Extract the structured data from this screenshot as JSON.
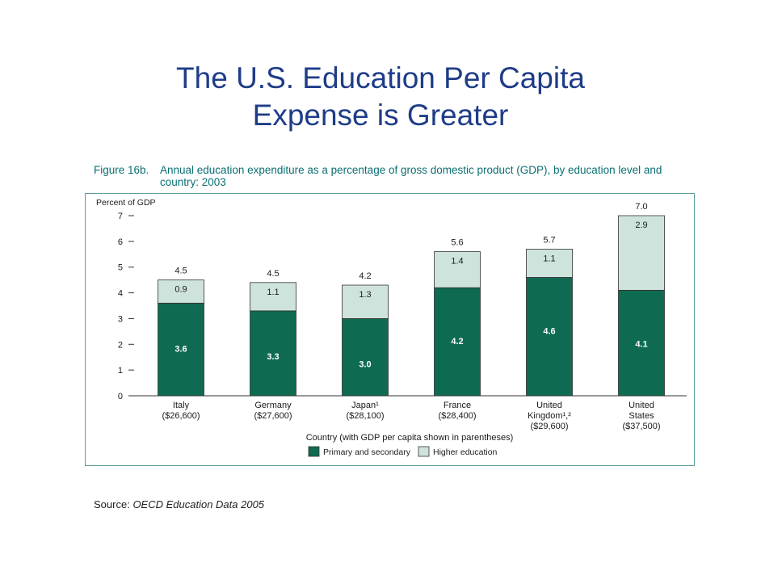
{
  "slide": {
    "title_line1": "The U.S. Education Per Capita",
    "title_line2": "Expense is Greater",
    "source_label": "Source:",
    "source_text": "OECD Education Data 2005"
  },
  "figure": {
    "label": "Figure 16b.",
    "caption": "Annual education expenditure as a percentage of gross domestic product (GDP), by education level and country: 2003"
  },
  "colors": {
    "primary": "#0e6b52",
    "higher": "#cfe3dd",
    "frame": "#5d9f9b",
    "caption": "#0b6f72",
    "title": "#1f3c88"
  },
  "chart_data": {
    "type": "bar",
    "stacked": true,
    "ylabel": "Percent of GDP",
    "xlabel": "Country (with GDP per capita shown in parentheses)",
    "ylim": [
      0,
      7
    ],
    "yticks": [
      0,
      1,
      2,
      3,
      4,
      5,
      6,
      7
    ],
    "categories": [
      [
        "Italy",
        "($26,600)"
      ],
      [
        "Germany",
        "($27,600)"
      ],
      [
        "Japan¹",
        "($28,100)"
      ],
      [
        "France",
        "($28,400)"
      ],
      [
        "United",
        "Kingdom¹,²",
        "($29,600)"
      ],
      [
        "United",
        "States",
        "($37,500)"
      ]
    ],
    "series": [
      {
        "name": "Primary and secondary",
        "values": [
          3.6,
          3.3,
          3.0,
          4.2,
          4.6,
          4.1
        ]
      },
      {
        "name": "Higher education",
        "values": [
          0.9,
          1.1,
          1.3,
          1.4,
          1.1,
          2.9
        ]
      }
    ],
    "totals": [
      4.5,
      4.5,
      4.2,
      5.6,
      5.7,
      7.0
    ],
    "legend_position": "bottom"
  }
}
